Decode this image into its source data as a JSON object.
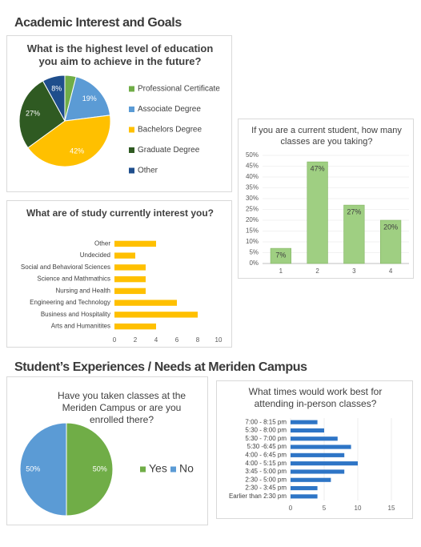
{
  "headings": [
    "Academic Interest and Goals",
    "Student’s Experiences / Needs at Meriden Campus"
  ],
  "chart_data": [
    {
      "type": "pie",
      "title": "What is the highest level of education you aim to achieve in the future?",
      "categories": [
        "Professional Certificate",
        "Associate Degree",
        "Bachelors Degree",
        "Graduate Degree",
        "Other"
      ],
      "values": [
        4,
        19,
        42,
        27,
        8
      ],
      "value_labels": [
        null,
        "19%",
        "42%",
        "27%",
        "8%"
      ],
      "colors": [
        "#70ad47",
        "#5b9bd5",
        "#ffc000",
        "#2f5a22",
        "#1f4e8c"
      ],
      "legend": "right"
    },
    {
      "type": "bar",
      "title": "If you are a current student, how many classes are you taking?",
      "categories": [
        "1",
        "2",
        "3",
        "4"
      ],
      "values": [
        7,
        47,
        27,
        20
      ],
      "value_labels": [
        "7%",
        "47%",
        "27%",
        "20%"
      ],
      "color": "#9fcf82",
      "ylim": [
        0,
        50
      ],
      "yticks": [
        {
          "value": 0,
          "label": "0%"
        },
        {
          "value": 5,
          "label": "5%"
        },
        {
          "value": 10,
          "label": "10%"
        },
        {
          "value": 15,
          "label": "15%"
        },
        {
          "value": 20,
          "label": "20%"
        },
        {
          "value": 25,
          "label": "25%"
        },
        {
          "value": 30,
          "label": "30%"
        },
        {
          "value": 35,
          "label": "35%"
        },
        {
          "value": 40,
          "label": "40%"
        },
        {
          "value": 45,
          "label": "45%"
        },
        {
          "value": 50,
          "label": "50%"
        }
      ],
      "grid": true
    },
    {
      "type": "bar",
      "orientation": "horizontal",
      "title": "What are of study currently interest you?",
      "categories": [
        "Other",
        "Undecided",
        "Social and Behavioral Sciences",
        "Science and Mathmathics",
        "Nursing and Health",
        "Engineering and Technology",
        "Business and Hospitality",
        "Arts and Humanitites"
      ],
      "values": [
        4,
        2,
        3,
        3,
        3,
        6,
        8,
        4
      ],
      "color": "#ffc000",
      "xlim": [
        0,
        10
      ],
      "xticks": [
        0,
        2,
        4,
        6,
        8,
        10
      ],
      "grid": false
    },
    {
      "type": "pie",
      "title": "Have you taken classes at the Meriden Campus or are you enrolled there?",
      "categories": [
        "Yes",
        "No"
      ],
      "values": [
        50,
        50
      ],
      "value_labels": [
        "50%",
        "50%"
      ],
      "colors": [
        "#70ad47",
        "#5b9bd5"
      ],
      "legend": "right"
    },
    {
      "type": "bar",
      "orientation": "horizontal",
      "title": "What times would work best for attending in-person classes?",
      "categories": [
        "7:00 - 8:15 pm",
        "5:30 - 8:00 pm",
        "5:30 - 7:00 pm",
        "5:30 -6:45 pm",
        "4:00 - 6:45 pm",
        "4:00 - 5:15 pm",
        "3:45 - 5:00 pm",
        "2:30 - 5:00 pm",
        "2:30 - 3:45 pm",
        "Earlier than 2:30 pm"
      ],
      "values": [
        4,
        5,
        7,
        9,
        8,
        10,
        8,
        6,
        4,
        4
      ],
      "color": "#2e75c6",
      "xlim": [
        0,
        15
      ],
      "xticks": [
        0,
        5,
        10,
        15
      ],
      "grid": true
    }
  ]
}
